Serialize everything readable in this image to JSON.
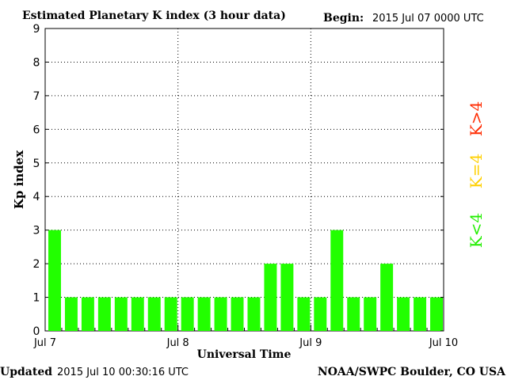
{
  "header": {
    "title": "Estimated Planetary K index (3 hour data)",
    "begin_label": "Begin:",
    "begin_value": "2015 Jul 07 0000 UTC"
  },
  "footer": {
    "updated_label": "Updated",
    "updated_value": "2015 Jul 10 00:30:16 UTC",
    "credit": "NOAA/SWPC Boulder, CO USA"
  },
  "legend": {
    "high": {
      "label": "K>4",
      "color": "#ff2a00"
    },
    "mid": {
      "label": "K=4",
      "color": "#ffd000"
    },
    "low": {
      "label": "K<4",
      "color": "#22ee00"
    }
  },
  "chart_data": {
    "type": "bar",
    "title": "Estimated Planetary K index (3 hour data)",
    "xlabel": "Universal Time",
    "ylabel": "Kp index",
    "ylim": [
      0,
      9
    ],
    "yticks": [
      "0",
      "1",
      "2",
      "3",
      "4",
      "5",
      "6",
      "7",
      "8",
      "9"
    ],
    "xticks": [
      "Jul 7",
      "Jul 8",
      "Jul 9",
      "Jul 10"
    ],
    "interval_hours": 3,
    "values": [
      3,
      1,
      1,
      1,
      1,
      1,
      1,
      1,
      1,
      1,
      1,
      1,
      1,
      2,
      2,
      1,
      1,
      3,
      1,
      1,
      2,
      1,
      1,
      1
    ],
    "bar_color": "#22ff00",
    "grid": true
  }
}
